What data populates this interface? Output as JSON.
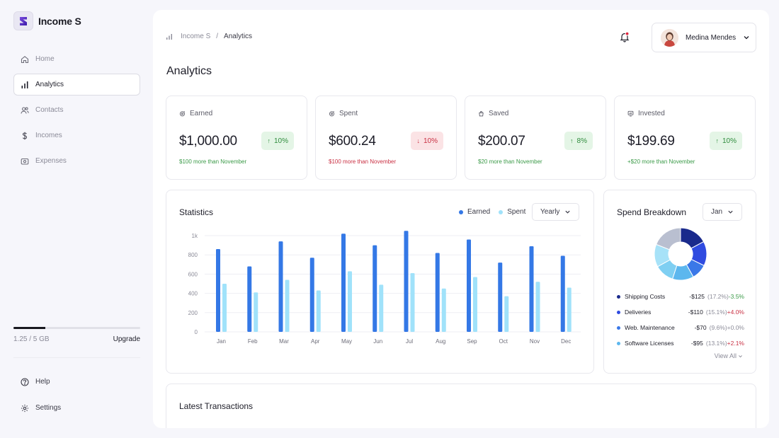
{
  "app": {
    "name": "Income S",
    "logo_letter": "S"
  },
  "sidebar": {
    "items": [
      {
        "label": "Home",
        "icon": "home-icon",
        "active": false
      },
      {
        "label": "Analytics",
        "icon": "bar-chart-icon",
        "active": true
      },
      {
        "label": "Contacts",
        "icon": "users-icon",
        "active": false
      },
      {
        "label": "Incomes",
        "icon": "dollar-icon",
        "active": false
      },
      {
        "label": "Expenses",
        "icon": "wallet-icon",
        "active": false
      }
    ],
    "storage": {
      "used_label": "1.25 / 5 GB",
      "used_fraction": 0.25,
      "upgrade_label": "Upgrade"
    },
    "bottom_items": [
      {
        "label": "Help",
        "icon": "help-icon"
      },
      {
        "label": "Settings",
        "icon": "gear-icon"
      }
    ]
  },
  "header": {
    "breadcrumb": {
      "root": "Income S",
      "separator": "/",
      "current": "Analytics"
    },
    "notification_icon": "bell-icon",
    "user": {
      "name": "Medina Mendes"
    }
  },
  "page": {
    "title": "Analytics"
  },
  "stats": [
    {
      "label": "Earned",
      "icon": "coin-icon",
      "value": "$1,000.00",
      "change": "10%",
      "direction": "up",
      "note": "$100 more than November"
    },
    {
      "label": "Spent",
      "icon": "coin-icon",
      "value": "$600.24",
      "change": "10%",
      "direction": "down",
      "note": "$100 more than November"
    },
    {
      "label": "Saved",
      "icon": "bag-icon",
      "value": "$200.07",
      "change": "8%",
      "direction": "up",
      "note": "$20 more than November"
    },
    {
      "label": "Invested",
      "icon": "chart-box-icon",
      "value": "$199.69",
      "change": "10%",
      "direction": "up",
      "note": "+$20 more than November"
    }
  ],
  "statistics": {
    "title": "Statistics",
    "period_select": "Yearly",
    "colors": {
      "earned": "#3478e6",
      "spent": "#a0e2fa",
      "grid": "#eeeef3"
    }
  },
  "chart_data": {
    "type": "bar",
    "categories": [
      "Jan",
      "Feb",
      "Mar",
      "Apr",
      "May",
      "Jun",
      "Jul",
      "Aug",
      "Sep",
      "Oct",
      "Nov",
      "Dec"
    ],
    "series": [
      {
        "name": "Earned",
        "values": [
          860,
          680,
          940,
          770,
          1020,
          900,
          1050,
          820,
          960,
          720,
          890,
          790
        ]
      },
      {
        "name": "Spent",
        "values": [
          500,
          410,
          540,
          430,
          630,
          490,
          610,
          450,
          570,
          370,
          520,
          460
        ]
      }
    ],
    "yticks": [
      "0",
      "200",
      "400",
      "600",
      "800",
      "1k"
    ],
    "ylim": [
      0,
      1000
    ],
    "legend": "top-right",
    "grid": true
  },
  "spend_breakdown": {
    "title": "Spend Breakdown",
    "month_select": "Jan",
    "items": [
      {
        "name": "Shipping Costs",
        "amount": "-$125",
        "pct": "(17.2%)",
        "delta": "-3.5%",
        "trend": "neg",
        "color": "#1a2a8c"
      },
      {
        "name": "Deliveries",
        "amount": "-$110",
        "pct": "(15.1%)",
        "delta": "+4.0%",
        "trend": "pos",
        "color": "#2f4be0"
      },
      {
        "name": "Web. Maintenance",
        "amount": "-$70",
        "pct": "(9.6%)",
        "delta": "+0.0%",
        "trend": "zero",
        "color": "#3a78e8"
      },
      {
        "name": "Software Licenses",
        "amount": "-$95",
        "pct": "(13.1%)",
        "delta": "+2.1%",
        "trend": "pos",
        "color": "#5cb7ee"
      }
    ],
    "donut_segments": [
      {
        "value": 17.2,
        "color": "#1a2a8c"
      },
      {
        "value": 15.1,
        "color": "#2f4be0"
      },
      {
        "value": 9.6,
        "color": "#3a78e8"
      },
      {
        "value": 13.1,
        "color": "#5cb7ee"
      },
      {
        "value": 12.0,
        "color": "#7fcff2"
      },
      {
        "value": 14.0,
        "color": "#a7e2f8"
      },
      {
        "value": 19.0,
        "color": "#b9bfd0"
      }
    ],
    "view_all_label": "View All"
  },
  "transactions": {
    "title": "Latest Transactions"
  }
}
